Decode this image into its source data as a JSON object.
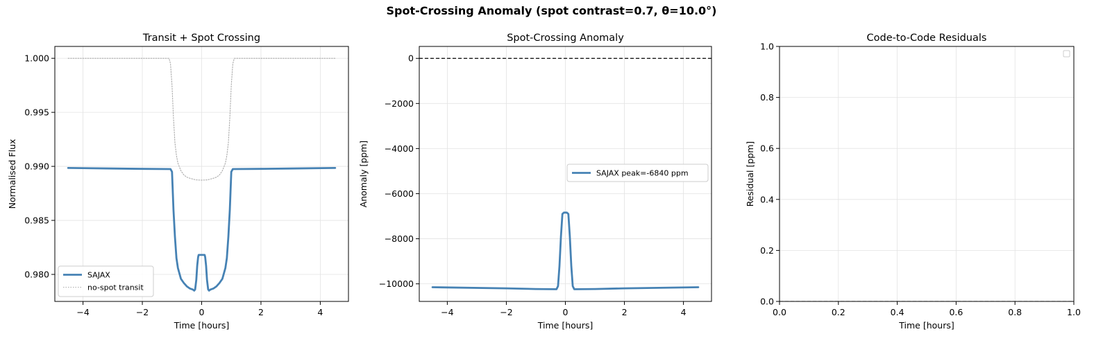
{
  "figure": {
    "suptitle": "Spot-Crossing Anomaly (spot contrast=0.7, θ=10.0°)"
  },
  "chart_data": [
    {
      "type": "line",
      "title": "Transit + Spot Crossing",
      "xlabel": "Time [hours]",
      "ylabel": "Normalised Flux",
      "xlim": [
        -4.95,
        4.95
      ],
      "ylim": [
        0.9775,
        1.0011
      ],
      "xticks": [
        -4,
        -2,
        0,
        2,
        4
      ],
      "xtick_labels": [
        "−4",
        "−2",
        "0",
        "2",
        "4"
      ],
      "yticks": [
        0.98,
        0.985,
        0.99,
        0.995,
        1.0
      ],
      "ytick_labels": [
        "0.980",
        "0.985",
        "0.990",
        "0.995",
        "1.000"
      ],
      "grid": true,
      "legend": "lower-left",
      "series": [
        {
          "name": "SAJAX",
          "color": "#4682b4",
          "style": "solid",
          "x": [
            -4.5,
            -3,
            -2,
            -1.05,
            -1.0,
            -0.95,
            -0.9,
            -0.85,
            -0.8,
            -0.7,
            -0.6,
            -0.5,
            -0.4,
            -0.3,
            -0.25,
            -0.22,
            -0.18,
            -0.15,
            -0.12,
            -0.1,
            0,
            0.1,
            0.12,
            0.15,
            0.18,
            0.22,
            0.25,
            0.3,
            0.4,
            0.5,
            0.6,
            0.7,
            0.8,
            0.85,
            0.9,
            0.95,
            1.0,
            1.05,
            2,
            3,
            4.5
          ],
          "y": [
            0.98985,
            0.9898,
            0.98977,
            0.98975,
            0.9895,
            0.986,
            0.9835,
            0.9815,
            0.9806,
            0.9796,
            0.9792,
            0.9789,
            0.9787,
            0.9786,
            0.9785,
            0.9786,
            0.9795,
            0.9808,
            0.9816,
            0.9818,
            0.9818,
            0.9818,
            0.9816,
            0.9808,
            0.9795,
            0.9786,
            0.9785,
            0.9786,
            0.9787,
            0.9789,
            0.9792,
            0.9796,
            0.9806,
            0.9815,
            0.9835,
            0.986,
            0.9895,
            0.98975,
            0.98977,
            0.9898,
            0.98985
          ]
        },
        {
          "name": "no-spot transit",
          "color": "#aaaaaa",
          "style": "dotted",
          "x": [
            -4.5,
            -1.1,
            -1.05,
            -1.0,
            -0.95,
            -0.9,
            -0.85,
            -0.8,
            -0.7,
            -0.6,
            -0.5,
            -0.4,
            -0.2,
            0,
            0.2,
            0.4,
            0.5,
            0.6,
            0.7,
            0.8,
            0.85,
            0.9,
            0.95,
            1.0,
            1.05,
            1.1,
            4.5
          ],
          "y": [
            1.0,
            1.0,
            0.9995,
            0.9975,
            0.9945,
            0.9922,
            0.991,
            0.9903,
            0.9896,
            0.9892,
            0.989,
            0.9889,
            0.98875,
            0.98872,
            0.98875,
            0.9889,
            0.989,
            0.9892,
            0.9896,
            0.9903,
            0.991,
            0.9922,
            0.9945,
            0.9975,
            0.9995,
            1.0,
            1.0
          ]
        }
      ]
    },
    {
      "type": "line",
      "title": "Spot-Crossing Anomaly",
      "xlabel": "Time [hours]",
      "ylabel": "Anomaly [ppm]",
      "xlim": [
        -4.95,
        4.95
      ],
      "ylim": [
        -10780,
        530
      ],
      "xticks": [
        -4,
        -2,
        0,
        2,
        4
      ],
      "xtick_labels": [
        "−4",
        "−2",
        "0",
        "2",
        "4"
      ],
      "yticks": [
        0,
        -2000,
        -4000,
        -6000,
        -8000,
        -10000
      ],
      "ytick_labels": [
        "0",
        "−2000",
        "−4000",
        "−6000",
        "−8000",
        "−10000"
      ],
      "grid": true,
      "legend": "center-right",
      "hline": {
        "y": 0,
        "color": "#000000",
        "style": "dashed"
      },
      "series": [
        {
          "name": "SAJAX",
          "legend_label": "SAJAX   peak=-6840 ppm",
          "color": "#4682b4",
          "style": "solid",
          "x": [
            -4.5,
            -2,
            -1,
            -0.3,
            -0.25,
            -0.2,
            -0.15,
            -0.1,
            -0.05,
            0,
            0.05,
            0.1,
            0.15,
            0.2,
            0.25,
            0.3,
            1,
            2,
            4.5
          ],
          "y": [
            -10150,
            -10200,
            -10230,
            -10240,
            -10100,
            -9200,
            -7900,
            -6900,
            -6840,
            -6840,
            -6840,
            -6900,
            -7900,
            -9200,
            -10100,
            -10240,
            -10230,
            -10200,
            -10150
          ]
        }
      ]
    },
    {
      "type": "line",
      "title": "Code-to-Code Residuals",
      "xlabel": "Time [hours]",
      "ylabel": "Residual [ppm]",
      "xlim": [
        0,
        1
      ],
      "ylim": [
        0,
        1
      ],
      "xticks": [
        0,
        0.2,
        0.4,
        0.6,
        0.8,
        1.0
      ],
      "xtick_labels": [
        "0.0",
        "0.2",
        "0.4",
        "0.6",
        "0.8",
        "1.0"
      ],
      "yticks": [
        0,
        0.2,
        0.4,
        0.6,
        0.8,
        1.0
      ],
      "ytick_labels": [
        "0.0",
        "0.2",
        "0.4",
        "0.6",
        "0.8",
        "1.0"
      ],
      "grid": true,
      "legend": "top-right",
      "hline": {
        "y": 0,
        "color": "#888888",
        "style": "dashed"
      },
      "series": []
    }
  ]
}
